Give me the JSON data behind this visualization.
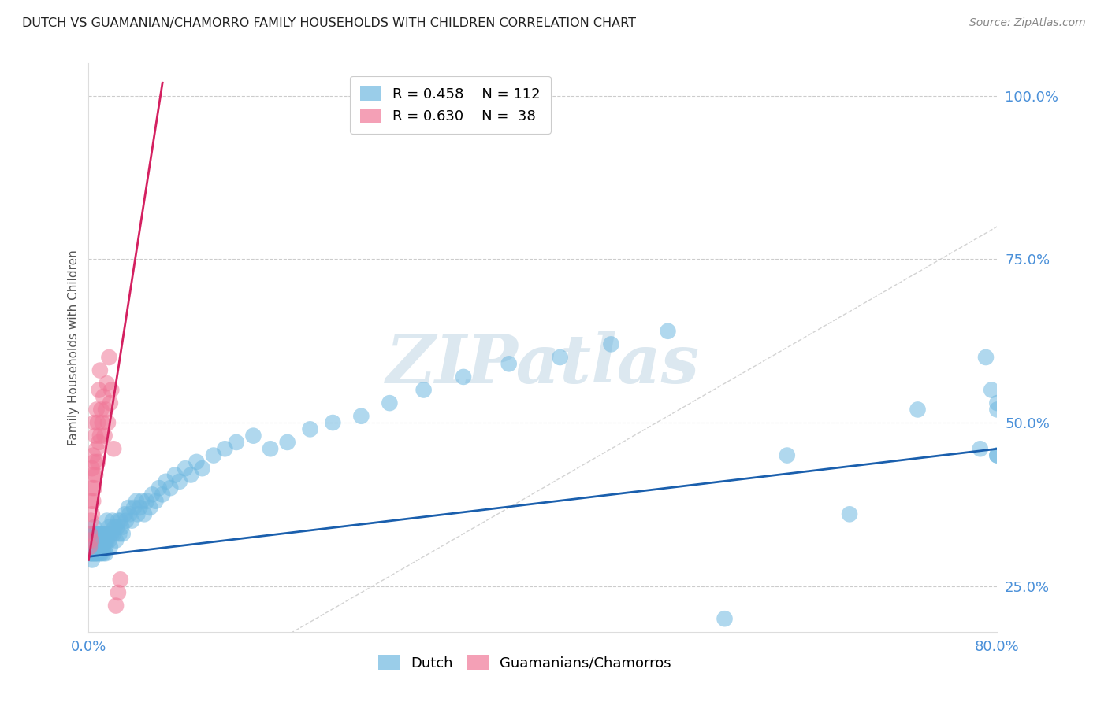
{
  "title": "DUTCH VS GUAMANIAN/CHAMORRO FAMILY HOUSEHOLDS WITH CHILDREN CORRELATION CHART",
  "source": "Source: ZipAtlas.com",
  "ylabel": "Family Households with Children",
  "y_ticks": [
    0.25,
    0.5,
    0.75,
    1.0
  ],
  "y_tick_labels": [
    "25.0%",
    "50.0%",
    "75.0%",
    "100.0%"
  ],
  "xlim": [
    0.0,
    0.8
  ],
  "ylim": [
    0.18,
    1.05
  ],
  "legend_dutch_R": "R = 0.458",
  "legend_dutch_N": "N = 112",
  "legend_guam_R": "R = 0.630",
  "legend_guam_N": "N =  38",
  "dutch_color": "#6fb8e0",
  "guam_color": "#f07898",
  "trend_dutch_color": "#1a5fad",
  "trend_guam_color": "#d42060",
  "ref_line_color": "#c8c8c8",
  "background_color": "#ffffff",
  "grid_color": "#cccccc",
  "title_color": "#222222",
  "right_axis_color": "#4a90d9",
  "watermark_color": "#dce8f0",
  "dutch_x": [
    0.001,
    0.001,
    0.002,
    0.002,
    0.002,
    0.003,
    0.003,
    0.003,
    0.003,
    0.004,
    0.004,
    0.004,
    0.004,
    0.005,
    0.005,
    0.005,
    0.005,
    0.006,
    0.006,
    0.006,
    0.006,
    0.007,
    0.007,
    0.007,
    0.008,
    0.008,
    0.008,
    0.009,
    0.009,
    0.009,
    0.01,
    0.01,
    0.01,
    0.011,
    0.011,
    0.012,
    0.012,
    0.013,
    0.013,
    0.014,
    0.014,
    0.015,
    0.015,
    0.016,
    0.016,
    0.017,
    0.018,
    0.018,
    0.019,
    0.02,
    0.021,
    0.022,
    0.023,
    0.024,
    0.025,
    0.026,
    0.027,
    0.028,
    0.029,
    0.03,
    0.032,
    0.033,
    0.035,
    0.036,
    0.038,
    0.04,
    0.042,
    0.043,
    0.045,
    0.047,
    0.049,
    0.051,
    0.054,
    0.056,
    0.059,
    0.062,
    0.065,
    0.068,
    0.072,
    0.076,
    0.08,
    0.085,
    0.09,
    0.095,
    0.1,
    0.11,
    0.12,
    0.13,
    0.145,
    0.16,
    0.175,
    0.195,
    0.215,
    0.24,
    0.265,
    0.295,
    0.33,
    0.37,
    0.415,
    0.46,
    0.51,
    0.56,
    0.615,
    0.67,
    0.73,
    0.785,
    0.79,
    0.795,
    0.8,
    0.8,
    0.8,
    0.8
  ],
  "dutch_y": [
    0.3,
    0.32,
    0.31,
    0.33,
    0.3,
    0.29,
    0.32,
    0.31,
    0.3,
    0.33,
    0.31,
    0.3,
    0.32,
    0.31,
    0.3,
    0.33,
    0.34,
    0.31,
    0.3,
    0.32,
    0.33,
    0.31,
    0.3,
    0.32,
    0.33,
    0.31,
    0.3,
    0.32,
    0.33,
    0.31,
    0.3,
    0.32,
    0.33,
    0.31,
    0.3,
    0.32,
    0.33,
    0.31,
    0.3,
    0.32,
    0.33,
    0.31,
    0.3,
    0.32,
    0.35,
    0.33,
    0.32,
    0.34,
    0.31,
    0.33,
    0.35,
    0.33,
    0.34,
    0.32,
    0.34,
    0.35,
    0.33,
    0.35,
    0.34,
    0.33,
    0.36,
    0.35,
    0.37,
    0.36,
    0.35,
    0.37,
    0.38,
    0.36,
    0.37,
    0.38,
    0.36,
    0.38,
    0.37,
    0.39,
    0.38,
    0.4,
    0.39,
    0.41,
    0.4,
    0.42,
    0.41,
    0.43,
    0.42,
    0.44,
    0.43,
    0.45,
    0.46,
    0.47,
    0.48,
    0.46,
    0.47,
    0.49,
    0.5,
    0.51,
    0.53,
    0.55,
    0.57,
    0.59,
    0.6,
    0.62,
    0.64,
    0.2,
    0.45,
    0.36,
    0.52,
    0.46,
    0.6,
    0.55,
    0.52,
    0.45,
    0.45,
    0.53
  ],
  "guam_x": [
    0.001,
    0.001,
    0.002,
    0.002,
    0.002,
    0.003,
    0.003,
    0.003,
    0.004,
    0.004,
    0.004,
    0.005,
    0.005,
    0.005,
    0.006,
    0.006,
    0.007,
    0.007,
    0.008,
    0.008,
    0.009,
    0.009,
    0.01,
    0.01,
    0.011,
    0.012,
    0.013,
    0.014,
    0.015,
    0.016,
    0.017,
    0.018,
    0.019,
    0.02,
    0.022,
    0.024,
    0.026,
    0.028
  ],
  "guam_y": [
    0.31,
    0.33,
    0.32,
    0.35,
    0.38,
    0.36,
    0.4,
    0.43,
    0.38,
    0.42,
    0.45,
    0.4,
    0.44,
    0.5,
    0.42,
    0.48,
    0.46,
    0.52,
    0.44,
    0.5,
    0.47,
    0.55,
    0.48,
    0.58,
    0.52,
    0.5,
    0.54,
    0.48,
    0.52,
    0.56,
    0.5,
    0.6,
    0.53,
    0.55,
    0.46,
    0.22,
    0.24,
    0.26
  ],
  "dutch_trend_x": [
    0.0,
    0.8
  ],
  "dutch_trend_y": [
    0.295,
    0.46
  ],
  "guam_trend_x": [
    0.0,
    0.065
  ],
  "guam_trend_y": [
    0.29,
    1.02
  ],
  "ref_line_x": [
    0.0,
    1.0
  ],
  "ref_line_y": [
    0.0,
    1.0
  ]
}
